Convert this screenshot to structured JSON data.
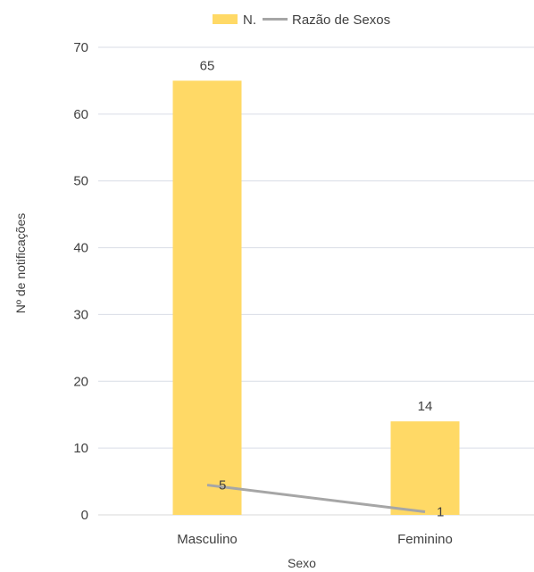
{
  "chart_data": {
    "type": "bar",
    "categories": [
      "Masculino",
      "Feminino"
    ],
    "series": [
      {
        "name": "N.",
        "kind": "bar",
        "values": [
          65,
          14
        ],
        "color": "#FFD966"
      },
      {
        "name": "Razão de Sexos",
        "kind": "line",
        "values": [
          5,
          1
        ],
        "color": "#A6A6A6"
      }
    ],
    "xlabel": "Sexo",
    "ylabel": "Nº de notificações",
    "ylim": [
      0,
      70
    ],
    "yticks": [
      0,
      10,
      20,
      30,
      40,
      50,
      60,
      70
    ],
    "grid": true,
    "legend_position": "top"
  }
}
